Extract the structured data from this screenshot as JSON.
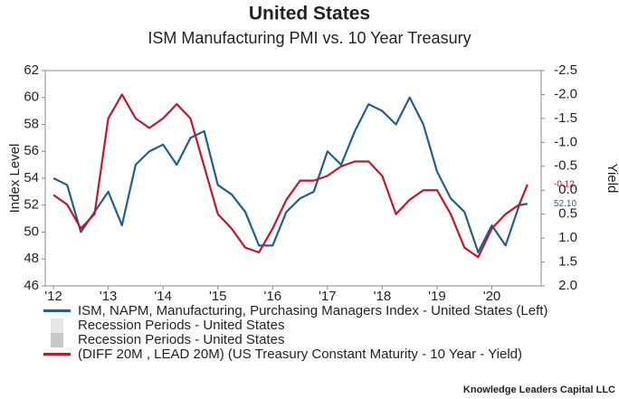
{
  "chart_data": {
    "type": "line",
    "title": "United States",
    "subtitle": "ISM Manufacturing PMI vs. 10 Year Treasury",
    "ylabel": "Index Level",
    "y2label": "Yield",
    "x": [
      2012,
      2012.25,
      2012.5,
      2012.75,
      2013,
      2013.25,
      2013.5,
      2013.75,
      2014,
      2014.25,
      2014.5,
      2014.75,
      2015,
      2015.25,
      2015.5,
      2015.75,
      2016,
      2016.25,
      2016.5,
      2016.75,
      2017,
      2017.25,
      2017.5,
      2017.75,
      2018,
      2018.25,
      2018.5,
      2018.75,
      2019,
      2019.25,
      2019.5,
      2019.75,
      2020,
      2020.25,
      2020.5,
      2020.65
    ],
    "series": [
      {
        "name": "ISM, NAPM, Manufacturing, Purchasing Managers Index - United States (Left)",
        "color": "#1f5f8b",
        "values": [
          54,
          53.5,
          50,
          51.5,
          53,
          50.5,
          55,
          56,
          56.5,
          55,
          57,
          57.5,
          53.5,
          52.8,
          51.5,
          49,
          49,
          51.5,
          52.5,
          53,
          56,
          55,
          57.5,
          59.5,
          59,
          58,
          60,
          58,
          54.5,
          52.5,
          51.5,
          48.5,
          50.5,
          49,
          52,
          52.1
        ]
      },
      {
        "name": "(DIFF 20M , LEAD 20M) (US Treasury Constant Maturity - 10 Year - Yield)",
        "color": "#c0182a",
        "axis": "y2",
        "values": [
          0.1,
          0.3,
          0.8,
          0.5,
          -1.5,
          -2.0,
          -1.5,
          -1.3,
          -1.5,
          -1.8,
          -1.5,
          -0.5,
          0.5,
          0.8,
          1.2,
          1.3,
          0.8,
          0.2,
          -0.2,
          -0.2,
          -0.3,
          -0.5,
          -0.6,
          -0.6,
          -0.3,
          0.5,
          0.2,
          0.0,
          0.0,
          0.5,
          1.2,
          1.4,
          0.8,
          0.5,
          0.3,
          -0.12
        ]
      }
    ],
    "recession_legend": [
      "Recession Periods - United States",
      "Recession Periods - United States"
    ],
    "annotations": [
      {
        "text": "-0.12",
        "series": 1
      },
      {
        "text": "52.10",
        "series": 0
      }
    ],
    "xlim": [
      2011.85,
      2020.9
    ],
    "xticks": [
      {
        "value": 2012,
        "label": "'12"
      },
      {
        "value": 2013,
        "label": "'13"
      },
      {
        "value": 2014,
        "label": "'14"
      },
      {
        "value": 2015,
        "label": "'15"
      },
      {
        "value": 2016,
        "label": "'16"
      },
      {
        "value": 2017,
        "label": "'17"
      },
      {
        "value": 2018,
        "label": "'18"
      },
      {
        "value": 2019,
        "label": "'19"
      },
      {
        "value": 2020,
        "label": "'20"
      }
    ],
    "ylim": [
      46,
      62
    ],
    "yticks": [
      46,
      48,
      50,
      52,
      54,
      56,
      58,
      60,
      62
    ],
    "y2lim": [
      2,
      -2.5
    ],
    "y2ticks": [
      {
        "value": 2,
        "label": "2.0"
      },
      1.5,
      {
        "value": 1,
        "label": "1.0"
      },
      0.5,
      {
        "value": 0,
        "label": "0.0"
      },
      -0.5,
      {
        "value": -1,
        "label": "-1.0"
      },
      -1.5,
      {
        "value": -2,
        "label": "-2.0"
      },
      -2.5
    ],
    "source": "Knowledge Leaders Capital LLC"
  }
}
